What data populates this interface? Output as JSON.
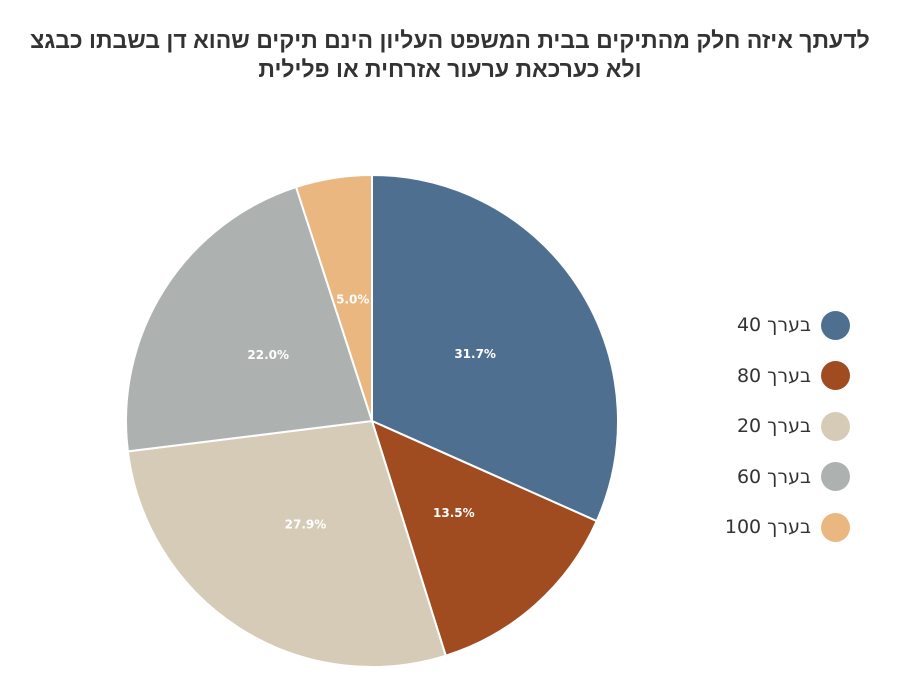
{
  "chart_data": {
    "type": "pie",
    "title": [
      "לדעתך איזה חלק מהתיקים בבית המשפט העליון הינם תיקים שהוא דן בשבתו כבגצ",
      "ולא כערכאת ערעור אזרחית או פלילית"
    ],
    "legend_position": "right",
    "slices": [
      {
        "name": "בערך 40",
        "value": 31.7,
        "label": "31.7%",
        "color": "#4f6f91"
      },
      {
        "name": "בערך 80",
        "value": 13.5,
        "label": "13.5%",
        "color": "#a04b20"
      },
      {
        "name": "בערך 20",
        "value": 27.9,
        "label": "27.9%",
        "color": "#d6cbb7"
      },
      {
        "name": "בערך 60",
        "value": 22.0,
        "label": "22.0%",
        "color": "#adb2b1"
      },
      {
        "name": "בערך 100",
        "value": 5.0,
        "label": "5.0%",
        "color": "#e9b77f"
      }
    ]
  }
}
